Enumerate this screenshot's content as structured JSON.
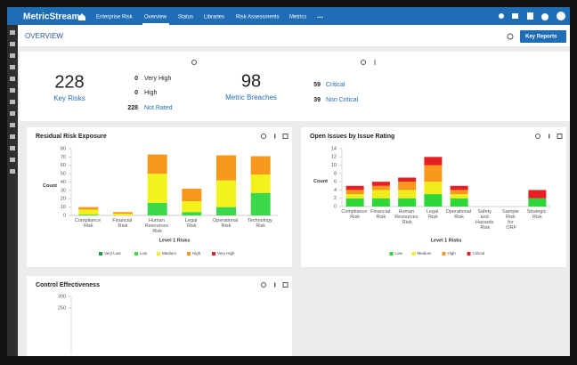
{
  "nav": {
    "brand": "MetricStream",
    "breadcrumb": "Enterprise Risk",
    "tabs": [
      "Overview",
      "Status",
      "Libraries",
      "Risk Assessments",
      "Metrics",
      "..."
    ]
  },
  "header": {
    "title": "OVERVIEW",
    "button": "Key Reports"
  },
  "kpis": [
    {
      "value": 228,
      "label": "Key Risks",
      "items": [
        {
          "count": 0,
          "label": "Very High"
        },
        {
          "count": 0,
          "label": "High"
        },
        {
          "count": 228,
          "label": "Not Rated"
        }
      ]
    },
    {
      "value": 98,
      "label": "Metric Breaches",
      "items": [
        {
          "count": 59,
          "label": "Critical"
        },
        {
          "count": 39,
          "label": "Non Critical"
        }
      ]
    }
  ],
  "chart_data": [
    {
      "type": "bar",
      "stacked": true,
      "title": "Residual Risk Exposure",
      "x_label": "Level 1 Risks",
      "y_label": "Count",
      "categories": [
        "Compliance Risk",
        "Financial Risk",
        "Human Resources Risk",
        "Legal Risk",
        "Operational Risk",
        "Technology Risk"
      ],
      "series": [
        {
          "name": "Very Low",
          "color": "#1e9e3a",
          "values": [
            0,
            0,
            0,
            0,
            0,
            0
          ]
        },
        {
          "name": "Low",
          "color": "#3ad84a",
          "values": [
            1,
            0,
            15,
            4,
            10,
            27
          ]
        },
        {
          "name": "Medium",
          "color": "#f2f21c",
          "values": [
            6,
            2,
            35,
            13,
            32,
            22
          ]
        },
        {
          "name": "High",
          "color": "#f7981c",
          "values": [
            3,
            2,
            23,
            15,
            30,
            22
          ]
        },
        {
          "name": "Very High",
          "color": "#e5202a",
          "values": [
            0,
            0,
            0,
            0,
            0,
            0
          ]
        }
      ],
      "ylim": [
        0,
        80
      ],
      "yticks": [
        0,
        10,
        20,
        30,
        40,
        50,
        60,
        70,
        80
      ]
    },
    {
      "type": "bar",
      "stacked": true,
      "title": "Open Issues by Issue Rating",
      "x_label": "Level 1 Risks",
      "y_label": "Count",
      "categories": [
        "Compliance Risk",
        "Financial Risk",
        "Human Resources Risk",
        "Legal Risk",
        "Operational Risk",
        "Safety and Hazards Risk",
        "Sample Risk for ORF",
        "Strategic Risk"
      ],
      "series": [
        {
          "name": "Low",
          "color": "#2ed63a",
          "values": [
            2,
            2,
            2,
            3,
            2,
            0,
            0,
            2
          ]
        },
        {
          "name": "Medium",
          "color": "#f2ec1c",
          "values": [
            1,
            2,
            2,
            3,
            1,
            0,
            0,
            0
          ]
        },
        {
          "name": "High",
          "color": "#f7981c",
          "values": [
            1,
            1,
            2,
            4,
            1,
            0,
            0,
            0
          ]
        },
        {
          "name": "Critical",
          "color": "#e51f23",
          "values": [
            1,
            1,
            1,
            2,
            1,
            0,
            0,
            2
          ]
        }
      ],
      "ylim": [
        0,
        14
      ],
      "yticks": [
        0,
        2,
        4,
        6,
        8,
        10,
        12,
        14
      ]
    },
    {
      "type": "bar",
      "title": "Control Effectiveness",
      "ylim": [
        50,
        300
      ],
      "yticks": [
        300,
        250
      ]
    }
  ]
}
